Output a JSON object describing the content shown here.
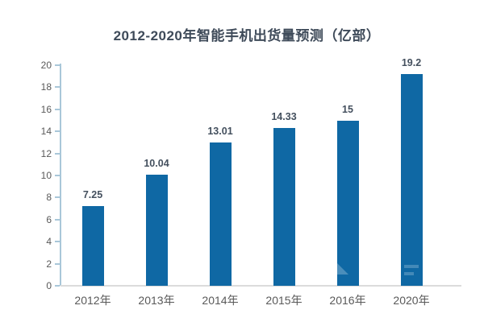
{
  "title": "2012-2020年智能手机出货量预测（亿部）",
  "chart_data": {
    "type": "bar",
    "title": "2012-2020年智能手机出货量预测（亿部）",
    "categories": [
      "2012年",
      "2013年",
      "2014年",
      "2015年",
      "2016年",
      "2020年"
    ],
    "values": [
      7.25,
      10.04,
      13.01,
      14.33,
      15,
      19.2
    ],
    "data_labels": [
      "7.25",
      "10.04",
      "13.01",
      "14.33",
      "15",
      "19.2"
    ],
    "xlabel": "",
    "ylabel": "",
    "ylim": [
      0,
      20
    ],
    "ytick_step": 2,
    "ytick_labels": [
      "0",
      "2",
      "4",
      "6",
      "8",
      "10",
      "12",
      "14",
      "16",
      "18",
      "20"
    ],
    "grid": false,
    "legend": "none",
    "bar_color": "#0f68a4",
    "axis_line_color": "#a9c7d9",
    "baseline_color": "#dbdbdb",
    "title_color": "#3e4a59",
    "data_label_color": "#44505e",
    "tick_label_color": "#595959",
    "background_color": "#ffffff"
  }
}
